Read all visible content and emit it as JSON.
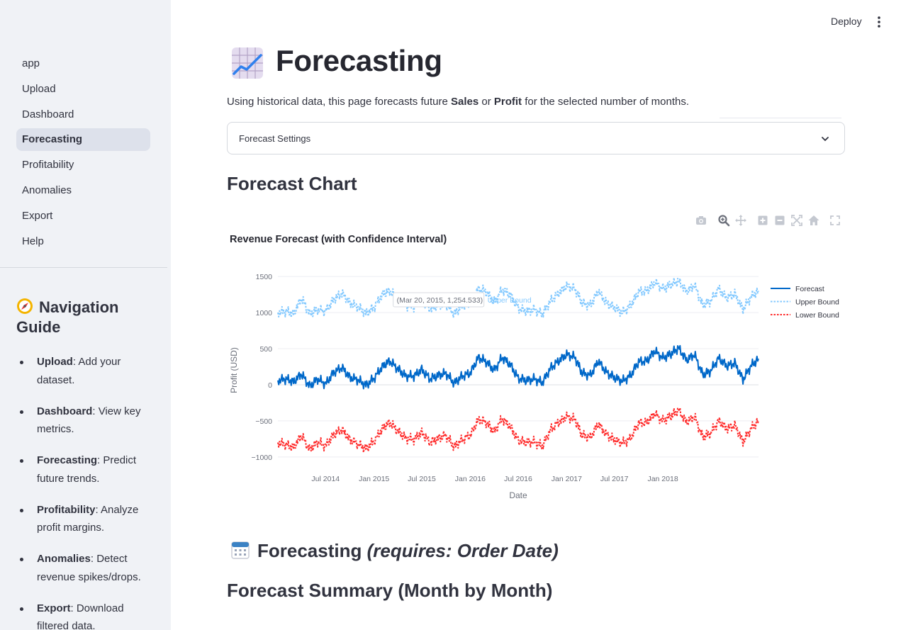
{
  "sidebar": {
    "nav": [
      "app",
      "Upload",
      "Dashboard",
      "Forecasting",
      "Profitability",
      "Anomalies",
      "Export",
      "Help"
    ],
    "active": "Forecasting",
    "guide_title": "Navigation Guide",
    "guide": [
      {
        "term": "Upload",
        "desc": ": Add your dataset."
      },
      {
        "term": "Dashboard",
        "desc": ": View key metrics."
      },
      {
        "term": "Forecasting",
        "desc": ": Predict future trends."
      },
      {
        "term": "Profitability",
        "desc": ": Analyze profit margins."
      },
      {
        "term": "Anomalies",
        "desc": ": Detect revenue spikes/drops."
      },
      {
        "term": "Export",
        "desc": ": Download filtered data."
      }
    ]
  },
  "header": {
    "deploy": "Deploy"
  },
  "main": {
    "title": "Forecasting",
    "intro": {
      "pre": "Using historical data, this page forecasts future ",
      "b1": "Sales",
      "mid": " or ",
      "b2": "Profit",
      "post": " for the selected number of months."
    },
    "expander_label": "Forecast Settings",
    "chart_heading": "Forecast Chart",
    "section_heading": "Forecasting",
    "section_heading_italic": "(requires: Order Date)",
    "summary_heading": "Forecast Summary (Month by Month)"
  },
  "modebar_icons": [
    "camera-icon",
    "zoom-icon",
    "pan-icon",
    "zoom-in-icon",
    "zoom-out-icon",
    "autoscale-icon",
    "reset-axes-icon",
    "fullscreen-icon"
  ],
  "chart_data": {
    "type": "line",
    "title": "Revenue Forecast (with Confidence Interval)",
    "xlabel": "Date",
    "ylabel": "Profit (USD)",
    "xlim": [
      "2014-01-01",
      "2018-12-30"
    ],
    "ylim": [
      -1100,
      1580
    ],
    "x_ticks": [
      "Jul 2014",
      "Jan 2015",
      "Jul 2015",
      "Jan 2016",
      "Jul 2016",
      "Jan 2017",
      "Jul 2017",
      "Jan 2018"
    ],
    "y_ticks": [
      1500,
      1000,
      500,
      0,
      -500,
      -1000
    ],
    "y_tick_labels": [
      "1500",
      "1000",
      "500",
      "0",
      "−500",
      "−1000"
    ],
    "legend_position": "top-right",
    "hover_label": "(Mar 20, 2015, 1,254.533)",
    "hover_series": "Upper Bound",
    "colors": {
      "forecast": "#0068c9",
      "upper": "#83c9ff",
      "lower": "#ff2b2b"
    },
    "series": [
      {
        "name": "Forecast",
        "style": "solid",
        "x": [
          "2014-01-01",
          "2014-02-01",
          "2014-03-01",
          "2014-04-01",
          "2014-05-01",
          "2014-06-01",
          "2014-07-01",
          "2014-08-01",
          "2014-09-01",
          "2014-10-01",
          "2014-11-01",
          "2014-12-01",
          "2015-01-01",
          "2015-02-01",
          "2015-03-01",
          "2015-04-01",
          "2015-05-01",
          "2015-06-01",
          "2015-07-01",
          "2015-08-01",
          "2015-09-01",
          "2015-10-01",
          "2015-11-01",
          "2015-12-01",
          "2016-01-01",
          "2016-02-01",
          "2016-03-01",
          "2016-04-01",
          "2016-05-01",
          "2016-06-01",
          "2016-07-01",
          "2016-08-01",
          "2016-09-01",
          "2016-10-01",
          "2016-11-01",
          "2016-12-01",
          "2017-01-01",
          "2017-02-01",
          "2017-03-01",
          "2017-04-01",
          "2017-05-01",
          "2017-06-01",
          "2017-07-01",
          "2017-08-01",
          "2017-09-01",
          "2017-10-01",
          "2017-11-01",
          "2017-12-01",
          "2018-01-01",
          "2018-02-01",
          "2018-03-01",
          "2018-04-01",
          "2018-05-01",
          "2018-06-01",
          "2018-07-01",
          "2018-08-01",
          "2018-09-01",
          "2018-10-01",
          "2018-11-01",
          "2018-12-01",
          "2018-12-30"
        ],
        "y": [
          60,
          80,
          40,
          150,
          -20,
          80,
          10,
          170,
          240,
          100,
          70,
          -10,
          90,
          250,
          330,
          220,
          120,
          120,
          210,
          80,
          130,
          160,
          20,
          120,
          160,
          380,
          320,
          200,
          380,
          280,
          90,
          60,
          80,
          30,
          230,
          330,
          420,
          380,
          160,
          130,
          330,
          170,
          100,
          50,
          130,
          320,
          330,
          470,
          370,
          430,
          510,
          340,
          420,
          140,
          190,
          370,
          260,
          300,
          70,
          260,
          360
        ]
      },
      {
        "name": "Upper Bound",
        "style": "dotted",
        "x": [
          "2014-01-01",
          "2014-02-01",
          "2014-03-01",
          "2014-04-01",
          "2014-05-01",
          "2014-06-01",
          "2014-07-01",
          "2014-08-01",
          "2014-09-01",
          "2014-10-01",
          "2014-11-01",
          "2014-12-01",
          "2015-01-01",
          "2015-02-01",
          "2015-03-01",
          "2015-04-01",
          "2015-05-01",
          "2015-06-01",
          "2015-07-01",
          "2015-08-01",
          "2015-09-01",
          "2015-10-01",
          "2015-11-01",
          "2015-12-01",
          "2016-01-01",
          "2016-02-01",
          "2016-03-01",
          "2016-04-01",
          "2016-05-01",
          "2016-06-01",
          "2016-07-01",
          "2016-08-01",
          "2016-09-01",
          "2016-10-01",
          "2016-11-01",
          "2016-12-01",
          "2017-01-01",
          "2017-02-01",
          "2017-03-01",
          "2017-04-01",
          "2017-05-01",
          "2017-06-01",
          "2017-07-01",
          "2017-08-01",
          "2017-09-01",
          "2017-10-01",
          "2017-11-01",
          "2017-12-01",
          "2018-01-01",
          "2018-02-01",
          "2018-03-01",
          "2018-04-01",
          "2018-05-01",
          "2018-06-01",
          "2018-07-01",
          "2018-08-01",
          "2018-09-01",
          "2018-10-01",
          "2018-11-01",
          "2018-12-01",
          "2018-12-30"
        ],
        "y": [
          1000,
          1020,
          980,
          1200,
          980,
          1040,
          1020,
          1180,
          1270,
          1130,
          1080,
          990,
          1070,
          1250,
          1300,
          1200,
          1100,
          1080,
          1180,
          1050,
          1100,
          1120,
          980,
          1100,
          1120,
          1330,
          1290,
          1150,
          1320,
          1250,
          1060,
          1020,
          1040,
          980,
          1160,
          1270,
          1370,
          1330,
          1130,
          1100,
          1300,
          1130,
          1070,
          1000,
          1100,
          1290,
          1300,
          1420,
          1330,
          1390,
          1440,
          1290,
          1380,
          1100,
          1160,
          1330,
          1200,
          1260,
          1040,
          1220,
          1300
        ]
      },
      {
        "name": "Lower Bound",
        "style": "dotted",
        "x": [
          "2014-01-01",
          "2014-02-01",
          "2014-03-01",
          "2014-04-01",
          "2014-05-01",
          "2014-06-01",
          "2014-07-01",
          "2014-08-01",
          "2014-09-01",
          "2014-10-01",
          "2014-11-01",
          "2014-12-01",
          "2015-01-01",
          "2015-02-01",
          "2015-03-01",
          "2015-04-01",
          "2015-05-01",
          "2015-06-01",
          "2015-07-01",
          "2015-08-01",
          "2015-09-01",
          "2015-10-01",
          "2015-11-01",
          "2015-12-01",
          "2016-01-01",
          "2016-02-01",
          "2016-03-01",
          "2016-04-01",
          "2016-05-01",
          "2016-06-01",
          "2016-07-01",
          "2016-08-01",
          "2016-09-01",
          "2016-10-01",
          "2016-11-01",
          "2016-12-01",
          "2017-01-01",
          "2017-02-01",
          "2017-03-01",
          "2017-04-01",
          "2017-05-01",
          "2017-06-01",
          "2017-07-01",
          "2017-08-01",
          "2017-09-01",
          "2017-10-01",
          "2017-11-01",
          "2017-12-01",
          "2018-01-01",
          "2018-02-01",
          "2018-03-01",
          "2018-04-01",
          "2018-05-01",
          "2018-06-01",
          "2018-07-01",
          "2018-08-01",
          "2018-09-01",
          "2018-10-01",
          "2018-11-01",
          "2018-12-01",
          "2018-12-30"
        ],
        "y": [
          -800,
          -830,
          -870,
          -700,
          -900,
          -790,
          -850,
          -690,
          -620,
          -760,
          -820,
          -890,
          -780,
          -610,
          -520,
          -640,
          -740,
          -760,
          -660,
          -800,
          -740,
          -700,
          -860,
          -760,
          -700,
          -480,
          -520,
          -650,
          -470,
          -580,
          -770,
          -800,
          -790,
          -850,
          -620,
          -520,
          -440,
          -480,
          -700,
          -730,
          -540,
          -690,
          -760,
          -810,
          -740,
          -530,
          -520,
          -400,
          -500,
          -430,
          -350,
          -520,
          -440,
          -720,
          -670,
          -500,
          -610,
          -560,
          -790,
          -610,
          -500
        ]
      }
    ]
  }
}
